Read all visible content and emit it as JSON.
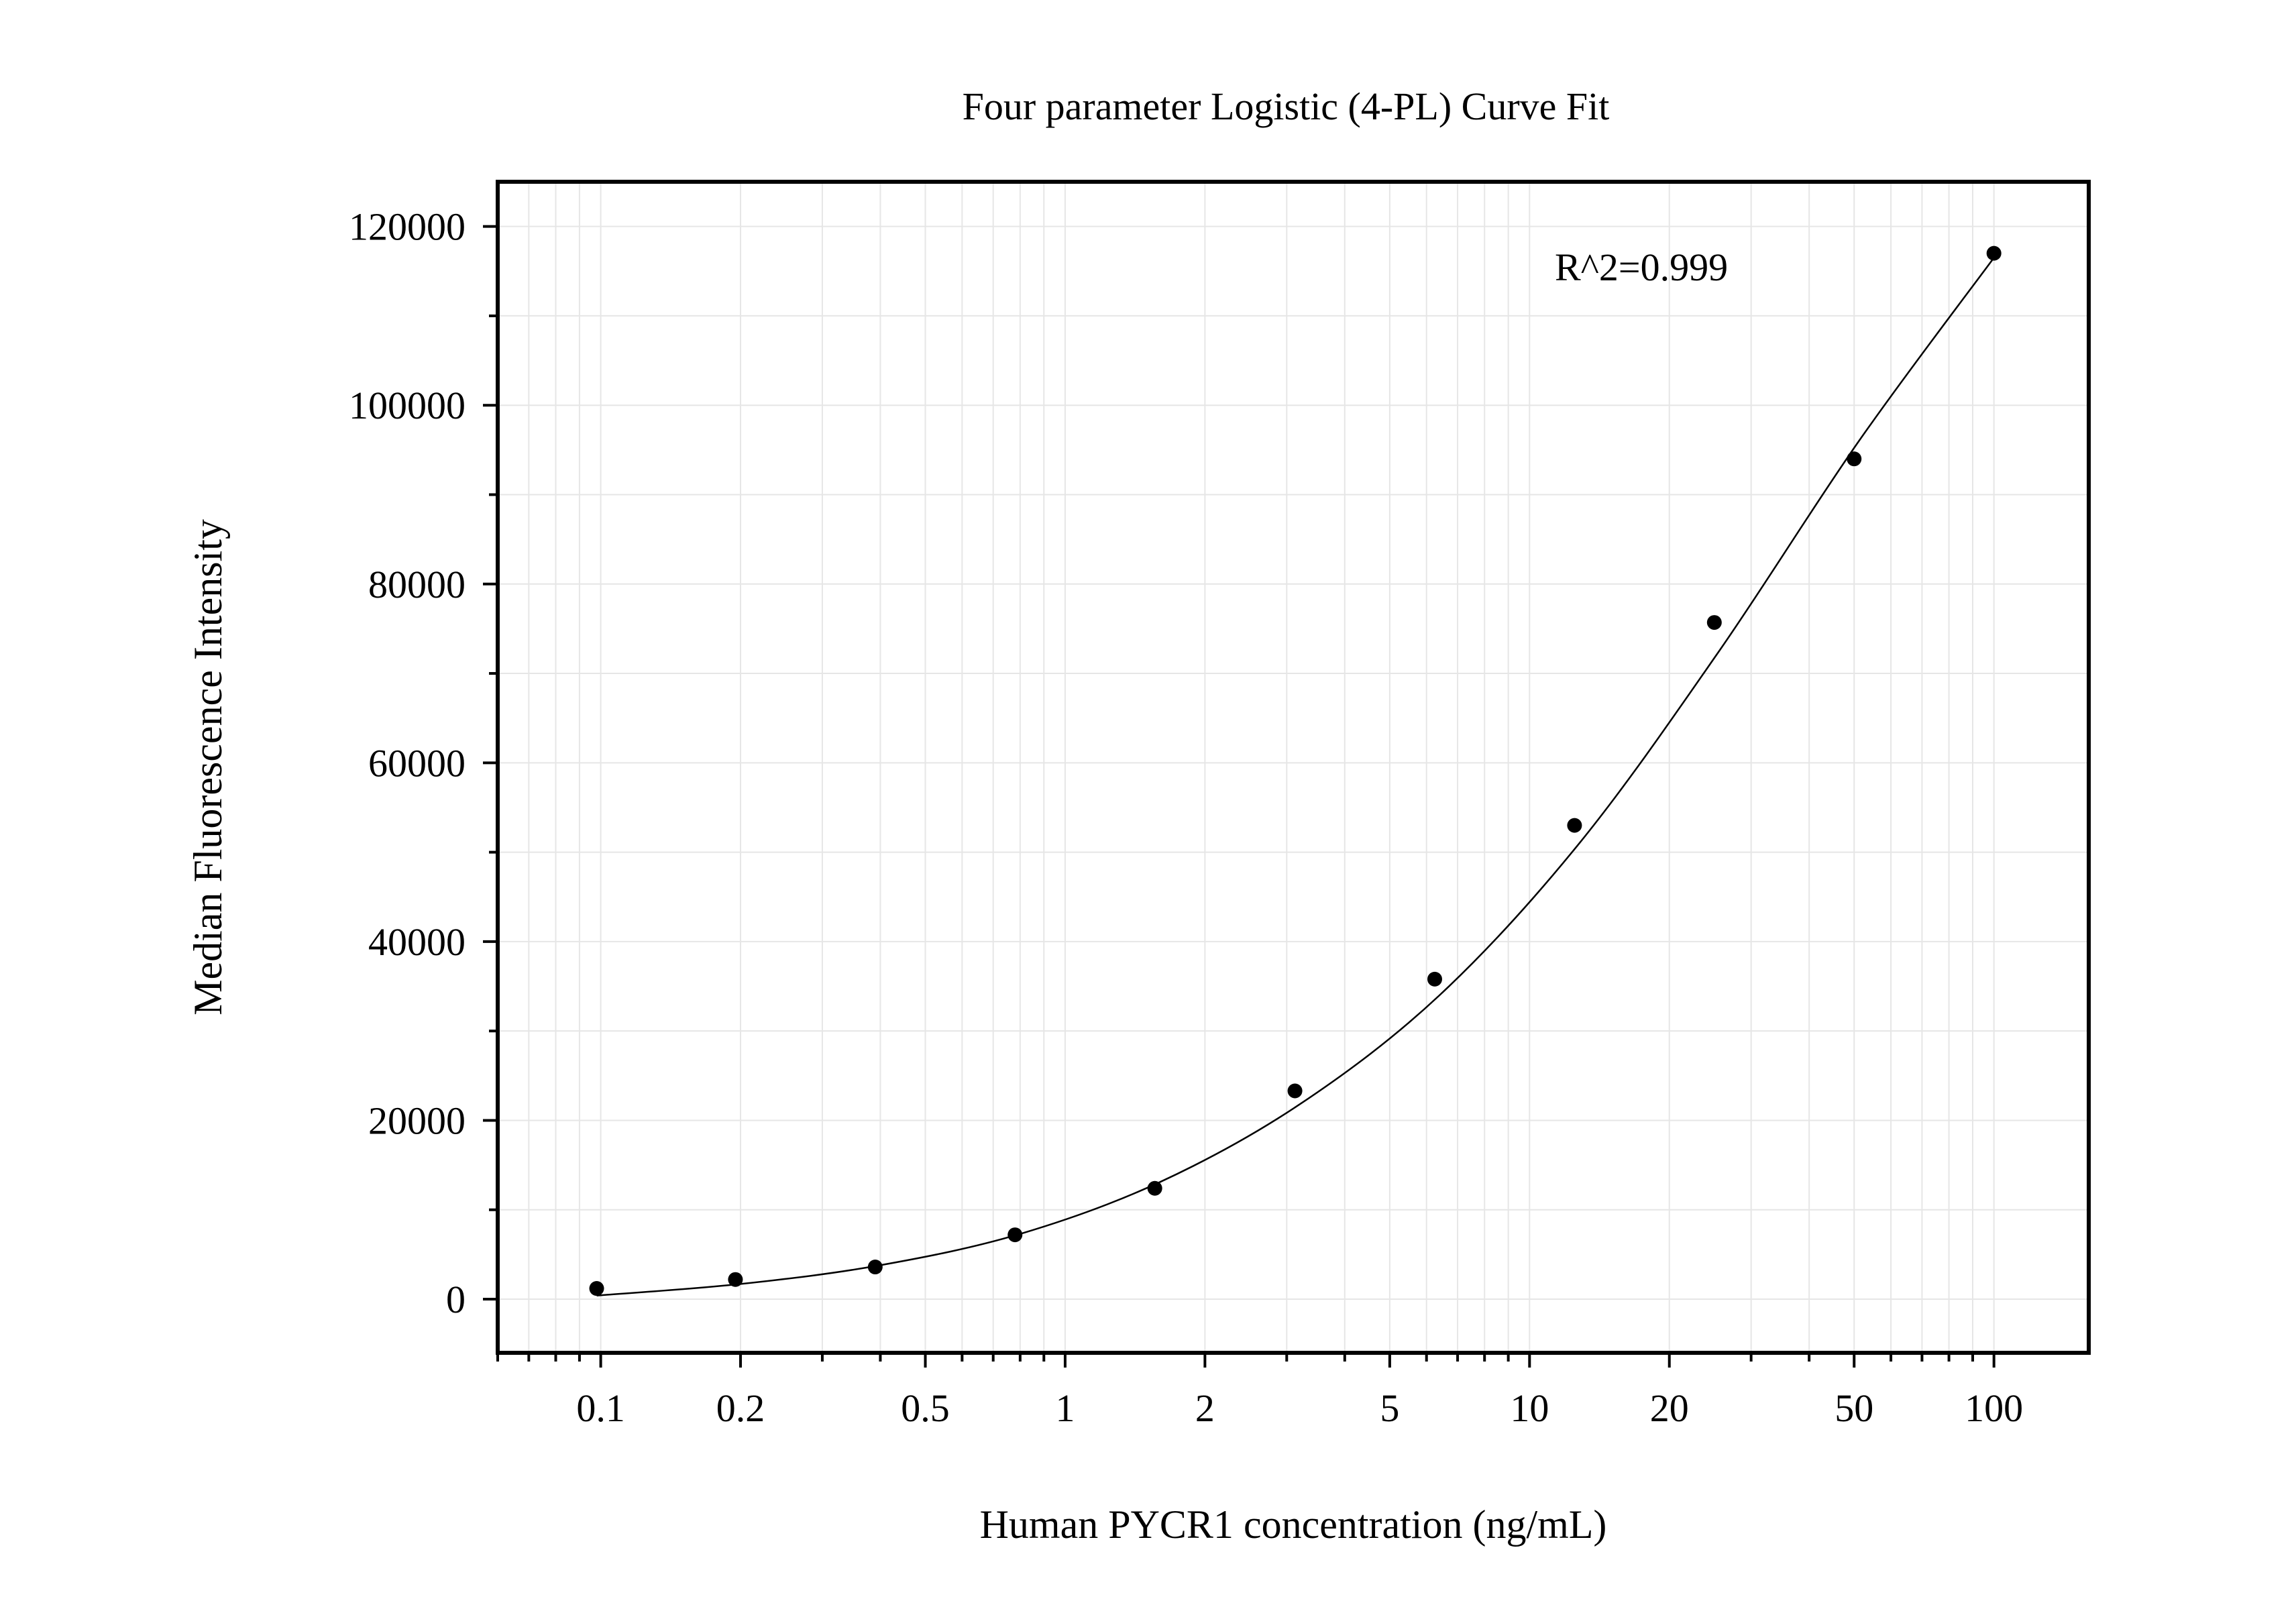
{
  "chart_data": {
    "type": "scatter",
    "title": "Four parameter Logistic (4-PL) Curve Fit",
    "xlabel": "Human PYCR1 concentration (ng/mL)",
    "ylabel": "Median Fluorescence Intensity",
    "xscale": "log",
    "xlim": [
      0.06,
      160
    ],
    "ylim": [
      -6000,
      125000
    ],
    "x_ticks": [
      0.1,
      0.2,
      0.5,
      1,
      2,
      5,
      10,
      20,
      50,
      100
    ],
    "x_tick_labels": [
      "0.1",
      "0.2",
      "0.5",
      "1",
      "2",
      "5",
      "10",
      "20",
      "50",
      "100"
    ],
    "y_ticks": [
      0,
      20000,
      40000,
      60000,
      80000,
      100000,
      120000
    ],
    "y_tick_labels": [
      "0",
      "20000",
      "40000",
      "60000",
      "80000",
      "100000",
      "120000"
    ],
    "grid": true,
    "annotation": "R^2=0.999",
    "series": [
      {
        "type": "scatter",
        "x": [
          0.098,
          0.195,
          0.39,
          0.78,
          1.56,
          3.125,
          6.25,
          12.5,
          25,
          50,
          100
        ],
        "y": [
          1200,
          2200,
          3600,
          7200,
          12400,
          23300,
          35800,
          53000,
          75700,
          94000,
          117000
        ]
      },
      {
        "type": "line",
        "x": [
          0.098,
          0.2,
          0.4,
          0.8,
          1.6,
          3.2,
          6.4,
          12.8,
          25.6,
          51.2,
          100
        ],
        "y": [
          400,
          1700,
          3800,
          7300,
          13100,
          21800,
          34000,
          51000,
          72500,
          96000,
          116500
        ]
      }
    ],
    "colors": {
      "markers": "#000000",
      "curve": "#000000",
      "grid": "#e6e6e6",
      "frame": "#000000"
    }
  }
}
